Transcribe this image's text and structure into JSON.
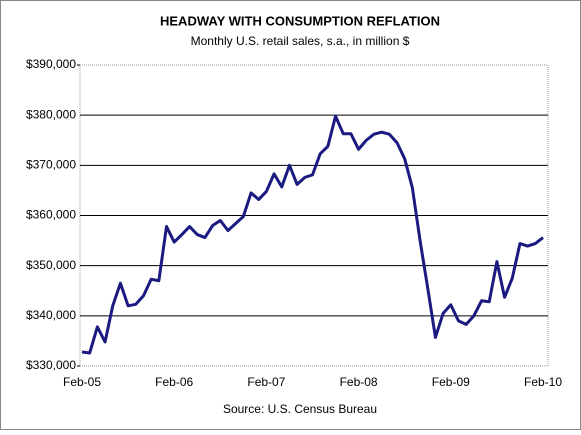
{
  "chart_data": {
    "type": "line",
    "title": "HEADWAY WITH CONSUMPTION REFLATION",
    "subtitle": "Monthly U.S. retail sales, s.a., in million $",
    "source": "Source: U.S. Census Bureau",
    "categories": [
      "Feb-05",
      null,
      null,
      null,
      null,
      null,
      null,
      null,
      null,
      null,
      null,
      null,
      "Feb-06",
      null,
      null,
      null,
      null,
      null,
      null,
      null,
      null,
      null,
      null,
      null,
      "Feb-07",
      null,
      null,
      null,
      null,
      null,
      null,
      null,
      null,
      null,
      null,
      null,
      "Feb-08",
      null,
      null,
      null,
      null,
      null,
      null,
      null,
      null,
      null,
      null,
      null,
      "Feb-09",
      null,
      null,
      null,
      null,
      null,
      null,
      null,
      null,
      null,
      null,
      null,
      "Feb-10"
    ],
    "series": [
      {
        "name": "Retail sales",
        "color": "#1a1a80",
        "values": [
          332800,
          332600,
          337800,
          334800,
          342000,
          346500,
          342000,
          342300,
          344000,
          347300,
          347000,
          357800,
          354700,
          356200,
          357800,
          356200,
          355600,
          358000,
          359000,
          357000,
          358400,
          359800,
          364500,
          363200,
          364800,
          368300,
          365700,
          370000,
          366200,
          367600,
          368100,
          372300,
          373800,
          379800,
          376300,
          376300,
          373200,
          375000,
          376200,
          376600,
          376200,
          374500,
          371300,
          365500,
          355000,
          345500,
          335700,
          340500,
          342200,
          339000,
          338300,
          340000,
          343000,
          342800,
          350800,
          343700,
          347500,
          354400,
          353900,
          354400,
          355600
        ]
      }
    ],
    "ylim": [
      330000,
      390000
    ],
    "yticks": [
      {
        "value": 330000,
        "label": "$330,000"
      },
      {
        "value": 340000,
        "label": "$340,000"
      },
      {
        "value": 350000,
        "label": "$350,000"
      },
      {
        "value": 360000,
        "label": "$360,000"
      },
      {
        "value": 370000,
        "label": "$370,000"
      },
      {
        "value": 380000,
        "label": "$380,000"
      },
      {
        "value": 390000,
        "label": "$390,000"
      }
    ],
    "grid": true
  }
}
